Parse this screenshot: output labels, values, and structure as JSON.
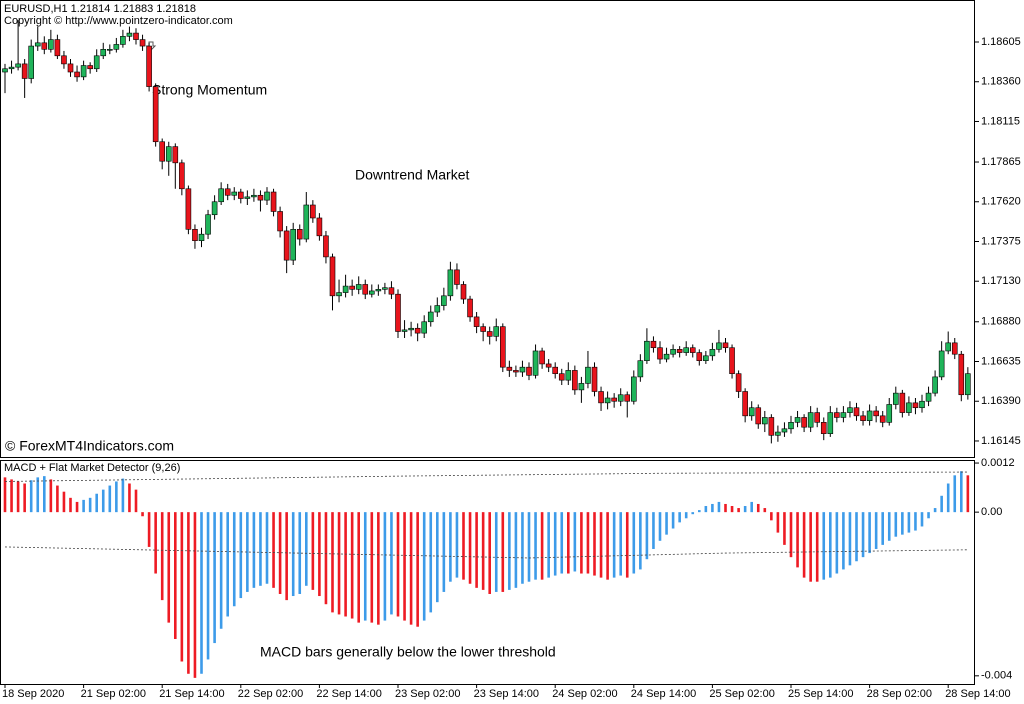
{
  "chart_data": [
    {
      "type": "candlestick",
      "title": "EURUSD,H1  1.21814 1.21883 1.21818",
      "subtitle": "Copyright © http://www.pointzero-indicator.com",
      "watermark": "© ForexMT4Indicators.com",
      "annotations": [
        "Strong Momentum",
        "Downtrend Market"
      ],
      "up_color": "#1fb45a",
      "down_color": "#e8141c",
      "wick_color": "#000000",
      "ylim": [
        1.1604,
        1.18864
      ],
      "yticks": [
        1.18605,
        {
          "value": 1.1836,
          "label": "1.18360"
        },
        1.18115,
        1.17865,
        {
          "value": 1.1762,
          "label": "1.17620"
        },
        1.17375,
        {
          "value": 1.1713,
          "label": "1.17130"
        },
        {
          "value": 1.1688,
          "label": "1.16880"
        },
        1.16635,
        {
          "value": 1.1639,
          "label": "1.16390"
        },
        1.16145
      ],
      "xticks": [
        {
          "value": 0,
          "label": "18 Sep 2020"
        },
        {
          "value": 12,
          "label": "21 Sep 02:00"
        },
        {
          "value": 24,
          "label": "21 Sep 14:00"
        },
        {
          "value": 36,
          "label": "22 Sep 02:00"
        },
        {
          "value": 48,
          "label": "22 Sep 14:00"
        },
        {
          "value": 60,
          "label": "23 Sep 02:00"
        },
        {
          "value": 72,
          "label": "23 Sep 14:00"
        },
        {
          "value": 84,
          "label": "24 Sep 02:00"
        },
        {
          "value": 96,
          "label": "24 Sep 14:00"
        },
        {
          "value": 108,
          "label": "25 Sep 02:00"
        },
        {
          "value": 120,
          "label": "25 Sep 14:00"
        },
        {
          "value": 132,
          "label": "28 Sep 02:00"
        },
        {
          "value": 144,
          "label": "28 Sep 14:00"
        }
      ],
      "open": [
        1.1842,
        1.1844,
        1.1845,
        1.1847,
        1.1838,
        1.1858,
        1.186,
        1.1856,
        1.1862,
        1.1852,
        1.1847,
        1.1842,
        1.1839,
        1.1846,
        1.1844,
        1.1852,
        1.1856,
        1.1856,
        1.1859,
        1.1864,
        1.1866,
        1.1862,
        1.1858,
        1.1833,
        1.1799,
        1.1787,
        1.1796,
        1.1786,
        1.177,
        1.1745,
        1.1738,
        1.1742,
        1.1754,
        1.1762,
        1.177,
        1.1766,
        1.1768,
        1.1764,
        1.1765,
        1.1766,
        1.1763,
        1.1768,
        1.1756,
        1.1744,
        1.1726,
        1.1745,
        1.1739,
        1.176,
        1.1752,
        1.1741,
        1.1728,
        1.1704,
        1.1706,
        1.171,
        1.1708,
        1.1711,
        1.1705,
        1.1707,
        1.1708,
        1.1709,
        1.1705,
        1.1682,
        1.1683,
        1.1684,
        1.1681,
        1.1688,
        1.1694,
        1.1698,
        1.1704,
        1.172,
        1.1711,
        1.1702,
        1.1691,
        1.1685,
        1.1682,
        1.1679,
        1.1685,
        1.166,
        1.1658,
        1.1657,
        1.166,
        1.1655,
        1.167,
        1.1662,
        1.166,
        1.1656,
        1.1652,
        1.1658,
        1.1646,
        1.165,
        1.166,
        1.1645,
        1.1638,
        1.1641,
        1.1639,
        1.1643,
        1.1639,
        1.1654,
        1.1664,
        1.1676,
        1.1672,
        1.1665,
        1.1668,
        1.1671,
        1.1669,
        1.1672,
        1.1669,
        1.1664,
        1.1667,
        1.1671,
        1.1675,
        1.1672,
        1.1656,
        1.1645,
        1.163,
        1.1635,
        1.1625,
        1.1629,
        1.1618,
        1.162,
        1.1622,
        1.1626,
        1.1629,
        1.1623,
        1.1632,
        1.1626,
        1.1619,
        1.1632,
        1.1629,
        1.1632,
        1.1635,
        1.163,
        1.1627,
        1.1633,
        1.163,
        1.1626,
        1.1637,
        1.1644,
        1.1632,
        1.1638,
        1.1635,
        1.1639,
        1.1644,
        1.1654,
        1.167,
        1.1675,
        1.1668,
        1.1643
      ],
      "high": [
        1.1847,
        1.1849,
        1.1874,
        1.185,
        1.1862,
        1.187,
        1.1864,
        1.1868,
        1.1865,
        1.1855,
        1.185,
        1.1846,
        1.1849,
        1.1848,
        1.1856,
        1.186,
        1.1859,
        1.1863,
        1.1868,
        1.187,
        1.1869,
        1.1865,
        1.186,
        1.1835,
        1.1801,
        1.1799,
        1.1798,
        1.1788,
        1.1772,
        1.1748,
        1.1746,
        1.1757,
        1.1766,
        1.1774,
        1.1773,
        1.1771,
        1.177,
        1.1769,
        1.177,
        1.1769,
        1.1771,
        1.177,
        1.1759,
        1.1747,
        1.1749,
        1.1748,
        1.1768,
        1.1763,
        1.1755,
        1.1744,
        1.173,
        1.1714,
        1.1717,
        1.1714,
        1.1716,
        1.1714,
        1.1711,
        1.1711,
        1.1712,
        1.1713,
        1.1708,
        1.1689,
        1.1688,
        1.1687,
        1.1692,
        1.1698,
        1.1703,
        1.1709,
        1.1725,
        1.1724,
        1.1713,
        1.1704,
        1.1694,
        1.1687,
        1.1685,
        1.169,
        1.1687,
        1.1664,
        1.1661,
        1.1664,
        1.1663,
        1.1674,
        1.1672,
        1.1665,
        1.1663,
        1.1659,
        1.1663,
        1.1661,
        1.1654,
        1.167,
        1.1663,
        1.1648,
        1.1645,
        1.1644,
        1.1647,
        1.1645,
        1.1658,
        1.1668,
        1.1684,
        1.1679,
        1.1676,
        1.1672,
        1.1674,
        1.1673,
        1.1676,
        1.1674,
        1.1671,
        1.167,
        1.1675,
        1.1683,
        1.1678,
        1.1674,
        1.1658,
        1.1647,
        1.1639,
        1.1637,
        1.1633,
        1.1631,
        1.1624,
        1.1626,
        1.163,
        1.1633,
        1.1631,
        1.1636,
        1.1635,
        1.1629,
        1.1636,
        1.1635,
        1.1636,
        1.1639,
        1.1638,
        1.1633,
        1.1637,
        1.1636,
        1.1633,
        1.1641,
        1.1648,
        1.1646,
        1.1642,
        1.1641,
        1.1643,
        1.1648,
        1.1658,
        1.1676,
        1.1682,
        1.1678,
        1.167,
        1.166
      ],
      "low": [
        1.1829,
        1.1841,
        1.1843,
        1.1826,
        1.1835,
        1.1855,
        1.1853,
        1.1854,
        1.185,
        1.1844,
        1.1839,
        1.1836,
        1.1837,
        1.1841,
        1.1842,
        1.185,
        1.1853,
        1.1854,
        1.1857,
        1.1861,
        1.1859,
        1.1855,
        1.183,
        1.1796,
        1.1782,
        1.1778,
        1.177,
        1.1766,
        1.1742,
        1.1733,
        1.1734,
        1.1739,
        1.1751,
        1.176,
        1.1763,
        1.1763,
        1.1761,
        1.176,
        1.1762,
        1.1756,
        1.176,
        1.1753,
        1.174,
        1.1718,
        1.1723,
        1.1735,
        1.1737,
        1.1749,
        1.1738,
        1.1724,
        1.1695,
        1.17,
        1.1703,
        1.1704,
        1.1705,
        1.1702,
        1.1703,
        1.1704,
        1.1705,
        1.1702,
        1.1678,
        1.1678,
        1.1679,
        1.1676,
        1.1678,
        1.1685,
        1.1691,
        1.1695,
        1.1701,
        1.1708,
        1.1699,
        1.1688,
        1.1681,
        1.1676,
        1.1674,
        1.1676,
        1.1657,
        1.1654,
        1.1654,
        1.1654,
        1.1652,
        1.1653,
        1.1659,
        1.1657,
        1.1653,
        1.1649,
        1.1649,
        1.1643,
        1.1638,
        1.1647,
        1.1642,
        1.1633,
        1.1634,
        1.1635,
        1.1636,
        1.1629,
        1.1637,
        1.1651,
        1.1662,
        1.1669,
        1.1662,
        1.1663,
        1.1666,
        1.1666,
        1.1667,
        1.1666,
        1.1661,
        1.1662,
        1.1664,
        1.1669,
        1.1669,
        1.1653,
        1.1641,
        1.1626,
        1.1627,
        1.1622,
        1.162,
        1.1613,
        1.1614,
        1.1617,
        1.1619,
        1.1623,
        1.162,
        1.162,
        1.1623,
        1.1615,
        1.1617,
        1.1626,
        1.1626,
        1.1629,
        1.1627,
        1.1624,
        1.1624,
        1.1626,
        1.1623,
        1.1624,
        1.1634,
        1.1629,
        1.163,
        1.1631,
        1.1632,
        1.1636,
        1.1642,
        1.1652,
        1.1668,
        1.1665,
        1.1639,
        1.164
      ],
      "close": [
        1.1844,
        1.1845,
        1.1847,
        1.1838,
        1.1858,
        1.186,
        1.1856,
        1.1862,
        1.1852,
        1.1847,
        1.1842,
        1.1839,
        1.1846,
        1.1844,
        1.1852,
        1.1856,
        1.1856,
        1.1859,
        1.1864,
        1.1866,
        1.1862,
        1.1858,
        1.1833,
        1.1799,
        1.1787,
        1.1796,
        1.1786,
        1.177,
        1.1745,
        1.1738,
        1.1742,
        1.1754,
        1.1762,
        1.177,
        1.1766,
        1.1768,
        1.1764,
        1.1765,
        1.1766,
        1.1763,
        1.1768,
        1.1756,
        1.1744,
        1.1726,
        1.1745,
        1.1739,
        1.176,
        1.1752,
        1.1741,
        1.1728,
        1.1704,
        1.1706,
        1.171,
        1.1708,
        1.1711,
        1.1705,
        1.1707,
        1.1708,
        1.1709,
        1.1705,
        1.1682,
        1.1683,
        1.1684,
        1.1681,
        1.1688,
        1.1694,
        1.1698,
        1.1704,
        1.172,
        1.1711,
        1.1702,
        1.1691,
        1.1685,
        1.1682,
        1.1679,
        1.1685,
        1.166,
        1.1658,
        1.1657,
        1.166,
        1.1655,
        1.167,
        1.1662,
        1.166,
        1.1656,
        1.1652,
        1.1658,
        1.1646,
        1.165,
        1.166,
        1.1645,
        1.1638,
        1.1641,
        1.1639,
        1.1643,
        1.1639,
        1.1654,
        1.1664,
        1.1676,
        1.1672,
        1.1665,
        1.1668,
        1.1671,
        1.1669,
        1.1672,
        1.1669,
        1.1664,
        1.1667,
        1.1671,
        1.1675,
        1.1672,
        1.1656,
        1.1645,
        1.163,
        1.1635,
        1.1625,
        1.1629,
        1.1618,
        1.162,
        1.1622,
        1.1626,
        1.1629,
        1.1623,
        1.1632,
        1.1626,
        1.1619,
        1.1632,
        1.1629,
        1.1632,
        1.1635,
        1.163,
        1.1627,
        1.1633,
        1.163,
        1.1626,
        1.1637,
        1.1644,
        1.1632,
        1.1638,
        1.1635,
        1.1639,
        1.1644,
        1.1654,
        1.167,
        1.1675,
        1.1668,
        1.1643,
        1.1656
      ]
    },
    {
      "type": "bar",
      "title": "MACD + Flat Market Detector (9,26)",
      "annotations": [
        "MACD bars generally below the lower threshold"
      ],
      "rise_color": "#3d9be9",
      "fall_color": "#ee1b24",
      "ylim": [
        -0.0042,
        0.00125
      ],
      "yticks": [
        0.0012,
        {
          "value": 0,
          "label": "0.00"
        },
        -0.004
      ],
      "levels": [
        {
          "x": [
            0,
            60,
            100,
            147
          ],
          "values": [
            0.00075,
            0.00088,
            0.00095,
            0.00098
          ]
        },
        {
          "x": [
            0,
            80,
            110,
            147
          ],
          "values": [
            -0.00085,
            -0.00112,
            -0.001,
            -0.00092
          ]
        }
      ],
      "values": [
        0.00085,
        0.0008,
        0.00075,
        0.0007,
        0.00078,
        0.00085,
        0.00088,
        0.0008,
        0.00065,
        0.0005,
        0.00035,
        0.00025,
        0.0003,
        0.00035,
        0.00045,
        0.00055,
        0.00065,
        0.00075,
        0.00082,
        0.0007,
        0.00055,
        -0.0001,
        -0.00085,
        -0.0015,
        -0.00215,
        -0.0027,
        -0.0031,
        -0.00365,
        -0.00395,
        -0.00405,
        -0.00395,
        -0.0036,
        -0.0032,
        -0.00285,
        -0.00255,
        -0.0023,
        -0.0021,
        -0.00195,
        -0.00185,
        -0.0018,
        -0.00175,
        -0.00185,
        -0.002,
        -0.00215,
        -0.00205,
        -0.002,
        -0.0018,
        -0.0019,
        -0.00205,
        -0.00225,
        -0.00245,
        -0.0025,
        -0.00255,
        -0.0026,
        -0.0027,
        -0.00265,
        -0.0027,
        -0.00275,
        -0.00265,
        -0.0025,
        -0.00255,
        -0.00265,
        -0.00275,
        -0.0028,
        -0.00265,
        -0.00245,
        -0.0022,
        -0.00195,
        -0.0017,
        -0.0016,
        -0.00165,
        -0.00175,
        -0.00185,
        -0.0019,
        -0.002,
        -0.00195,
        -0.00195,
        -0.0019,
        -0.00185,
        -0.00175,
        -0.0017,
        -0.00165,
        -0.00165,
        -0.0016,
        -0.00155,
        -0.0015,
        -0.0015,
        -0.00145,
        -0.0015,
        -0.0015,
        -0.00155,
        -0.0016,
        -0.00165,
        -0.0016,
        -0.00155,
        -0.0016,
        -0.0015,
        -0.0014,
        -0.00115,
        -0.0009,
        -0.0007,
        -0.00055,
        -0.0004,
        -0.00025,
        -0.00015,
        -5e-05,
        5e-05,
        0.00015,
        0.0002,
        0.00025,
        0.0002,
        0.00015,
        0.0001,
        0.00015,
        0.00025,
        0.0002,
        0.0001,
        -0.0002,
        -0.0005,
        -0.0008,
        -0.0011,
        -0.00135,
        -0.0016,
        -0.0017,
        -0.0017,
        -0.00165,
        -0.0016,
        -0.0015,
        -0.0014,
        -0.0013,
        -0.0012,
        -0.0011,
        -0.001,
        -0.0009,
        -0.0008,
        -0.0007,
        -0.0006,
        -0.00055,
        -0.0005,
        -0.00045,
        -0.00035,
        -0.00015,
        0.0001,
        0.0004,
        0.0007,
        0.0009,
        0.001,
        0.0009
      ]
    }
  ]
}
